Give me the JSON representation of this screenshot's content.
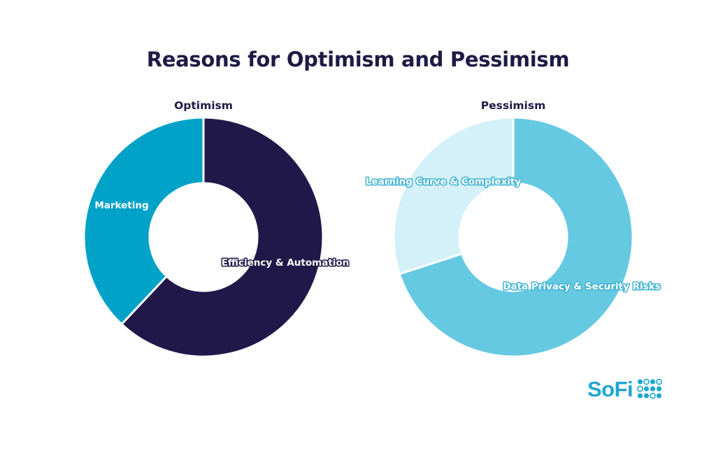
{
  "title": "Reasons for Optimism and Pessimism",
  "colors": {
    "title": "#1f1a45",
    "optimism_efficiency": "#21184a",
    "optimism_marketing": "#00a2c8",
    "pessimism_data_privacy": "#66c9e2",
    "pessimism_learning_curve": "#d4f0f8",
    "brand": "#1ea7cf"
  },
  "brand": {
    "logo_text": "SoFi",
    "logo_icon": "sofi-dot-grid-icon"
  },
  "chart_data": [
    {
      "type": "pie",
      "variant": "donut",
      "title": "Optimism",
      "start": "top",
      "direction": "clockwise",
      "series": [
        {
          "label": "Efficiency & Automation",
          "value": 62,
          "color": "#21184a"
        },
        {
          "label": "Marketing",
          "value": 38,
          "color": "#00a2c8"
        }
      ]
    },
    {
      "type": "pie",
      "variant": "donut",
      "title": "Pessimism",
      "start": "top",
      "direction": "clockwise",
      "series": [
        {
          "label": "Data Privacy & Security Risks",
          "value": 70,
          "color": "#66c9e2"
        },
        {
          "label": "Learning Curve & Complexity",
          "value": 30,
          "color": "#d4f0f8"
        }
      ]
    }
  ]
}
